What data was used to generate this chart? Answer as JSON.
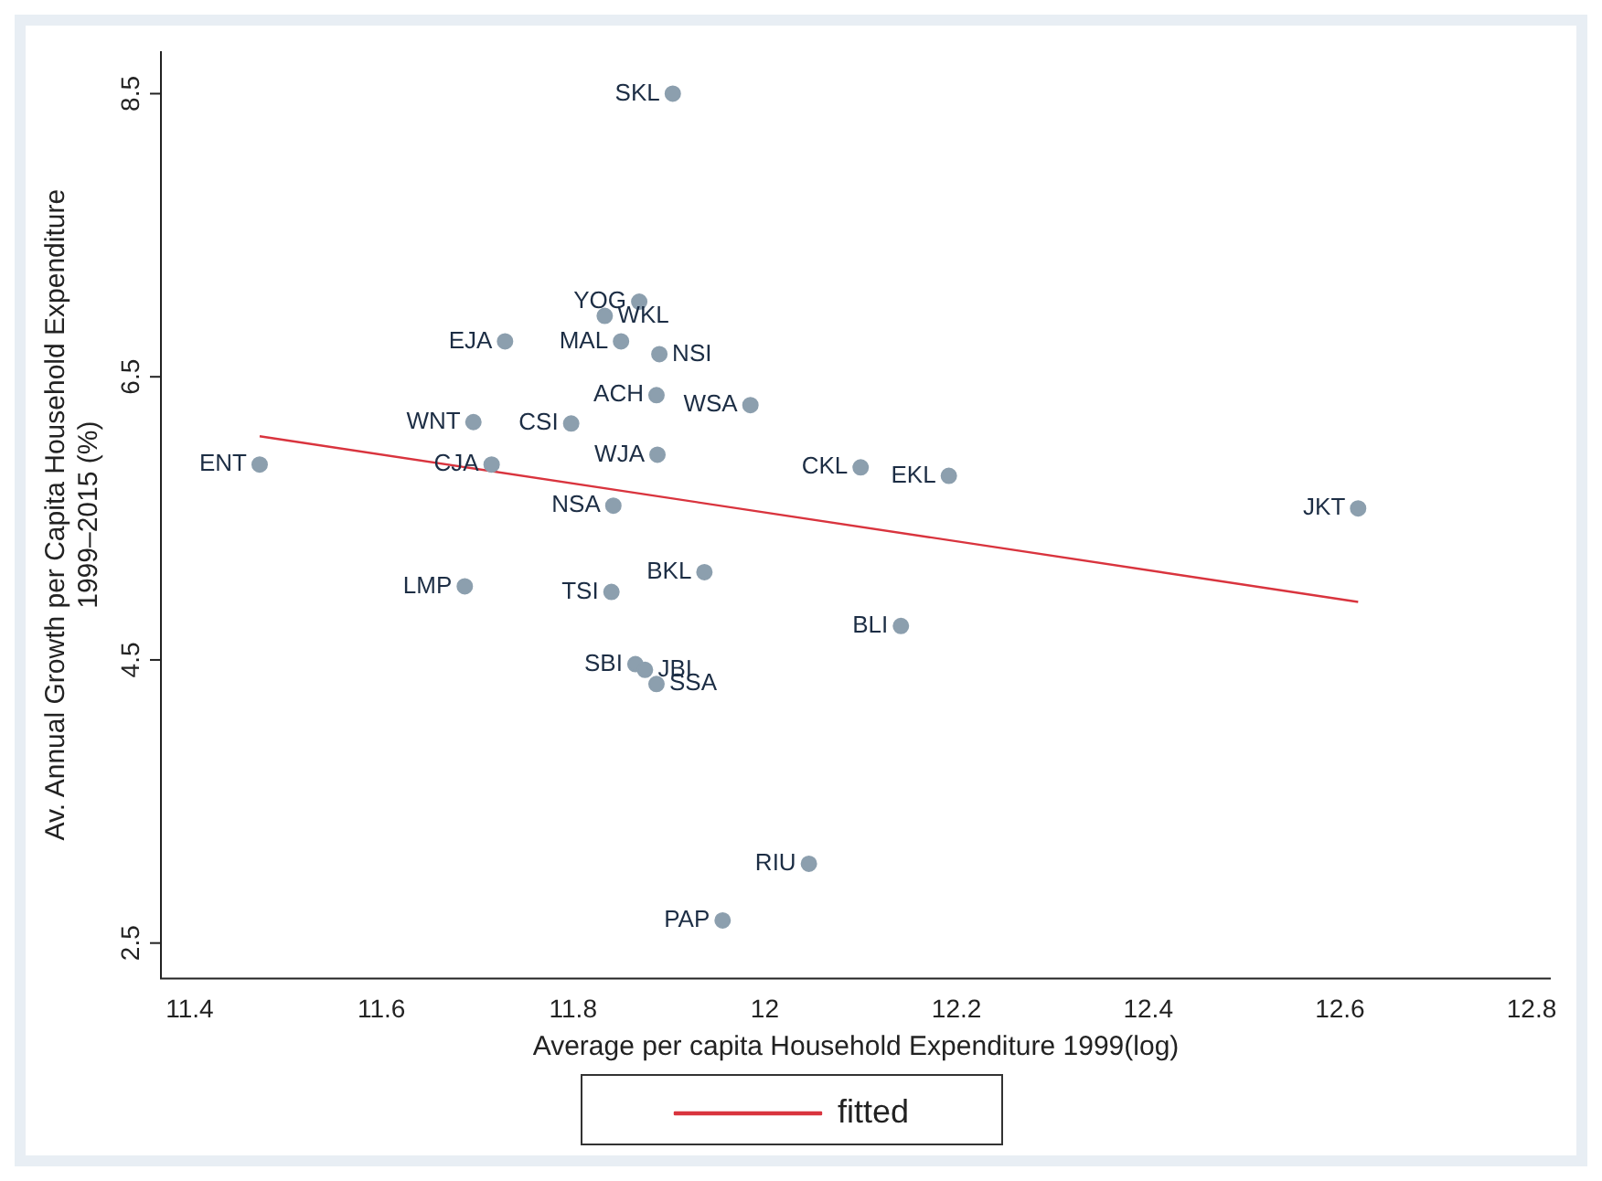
{
  "chart_data": {
    "type": "scatter",
    "xlabel": "Average per capita Household Expenditure 1999(log)",
    "ylabel": "Av. Annual Growth per Capita Household Expenditure\n1999–2015 (%)",
    "xlim": [
      11.37,
      12.82
    ],
    "ylim": [
      2.25,
      8.8
    ],
    "xticks": [
      11.4,
      11.6,
      11.8,
      12,
      12.2,
      12.4,
      12.6,
      12.8
    ],
    "yticks": [
      2.5,
      4.5,
      6.5,
      8.5
    ],
    "grid": false,
    "legend": "bottom",
    "marker": "circle",
    "series": [
      {
        "type": "scatter",
        "color": "#8c9fae",
        "x": [
          11.904,
          11.869,
          11.833,
          11.729,
          11.85,
          11.89,
          11.887,
          11.985,
          11.696,
          11.798,
          11.473,
          11.715,
          11.888,
          12.1,
          12.192,
          11.842,
          12.619,
          11.937,
          11.687,
          11.84,
          12.142,
          11.865,
          11.875,
          11.887,
          12.046,
          11.956
        ],
        "values": [
          8.5,
          7.03,
          6.93,
          6.75,
          6.75,
          6.66,
          6.37,
          6.3,
          6.18,
          6.17,
          5.88,
          5.88,
          5.95,
          5.86,
          5.8,
          5.59,
          5.57,
          5.12,
          5.02,
          4.98,
          4.74,
          4.47,
          4.43,
          4.33,
          3.06,
          2.66
        ]
      },
      {
        "type": "line",
        "name": "fitted",
        "color": "#d9343e",
        "x": [
          11.473,
          12.619
        ],
        "values": [
          6.08,
          4.91
        ],
        "marker": "none"
      }
    ],
    "annotations": [
      {
        "text": "SKL",
        "x": 11.904,
        "y": 8.5
      },
      {
        "text": "YOG",
        "x": 11.869,
        "y": 7.03
      },
      {
        "text": "WKL",
        "x": 11.833,
        "y": 6.93
      },
      {
        "text": "EJA",
        "x": 11.729,
        "y": 6.75
      },
      {
        "text": "MAL",
        "x": 11.85,
        "y": 6.75
      },
      {
        "text": "NSI",
        "x": 11.89,
        "y": 6.66
      },
      {
        "text": "ACH",
        "x": 11.887,
        "y": 6.37
      },
      {
        "text": "WSA",
        "x": 11.985,
        "y": 6.3
      },
      {
        "text": "WNT",
        "x": 11.696,
        "y": 6.18
      },
      {
        "text": "CSI",
        "x": 11.798,
        "y": 6.17
      },
      {
        "text": "ENT",
        "x": 11.473,
        "y": 5.88
      },
      {
        "text": "CJA",
        "x": 11.715,
        "y": 5.88
      },
      {
        "text": "WJA",
        "x": 11.888,
        "y": 5.95
      },
      {
        "text": "CKL",
        "x": 12.1,
        "y": 5.86
      },
      {
        "text": "EKL",
        "x": 12.192,
        "y": 5.8
      },
      {
        "text": "NSA",
        "x": 11.842,
        "y": 5.59
      },
      {
        "text": "JKT",
        "x": 12.619,
        "y": 5.57
      },
      {
        "text": "BKL",
        "x": 11.937,
        "y": 5.12
      },
      {
        "text": "LMP",
        "x": 11.687,
        "y": 5.02
      },
      {
        "text": "TSI",
        "x": 11.84,
        "y": 4.98
      },
      {
        "text": "BLI",
        "x": 12.142,
        "y": 4.74
      },
      {
        "text": "SBI",
        "x": 11.865,
        "y": 4.47
      },
      {
        "text": "JBI",
        "x": 11.875,
        "y": 4.43
      },
      {
        "text": "SSA",
        "x": 11.887,
        "y": 4.33
      },
      {
        "text": "RIU",
        "x": 12.046,
        "y": 3.06
      },
      {
        "text": "PAP",
        "x": 11.956,
        "y": 2.66
      }
    ]
  }
}
